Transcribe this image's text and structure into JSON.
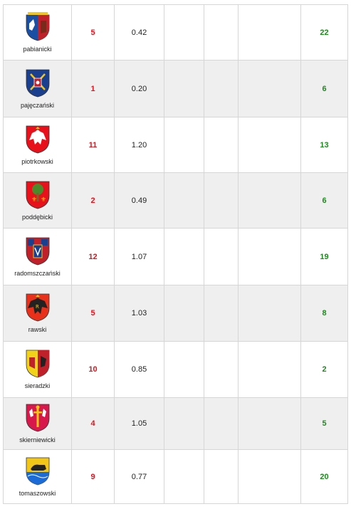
{
  "rows": [
    {
      "name": "pabianicki",
      "red": "5",
      "value": "0.42",
      "green": "22",
      "crest": {
        "colors": [
          "#1a4fa3",
          "#c0202a",
          "#ffffff"
        ],
        "icon": "pabianicki-crest-icon"
      }
    },
    {
      "name": "pajęczański",
      "red": "1",
      "value": "0.20",
      "green": "6",
      "crest": {
        "colors": [
          "#1a3f8f",
          "#f2c618",
          "#c0202a"
        ],
        "icon": "pajeczanski-crest-icon"
      }
    },
    {
      "name": "piotrkowski",
      "red": "11",
      "value": "1.20",
      "green": "13",
      "crest": {
        "colors": [
          "#e8101a",
          "#ffffff",
          "#f2c618"
        ],
        "icon": "piotrkowski-crest-icon"
      }
    },
    {
      "name": "poddębicki",
      "red": "2",
      "value": "0.49",
      "green": "6",
      "crest": {
        "colors": [
          "#e8101a",
          "#f2c618",
          "#4a8a2a"
        ],
        "icon": "poddebicki-crest-icon"
      }
    },
    {
      "name": "radomszczański",
      "red": "12",
      "value": "1.07",
      "green": "19",
      "crest": {
        "colors": [
          "#1a3f8f",
          "#c0202a",
          "#f2c618"
        ],
        "icon": "radomszczanski-crest-icon"
      }
    },
    {
      "name": "rawski",
      "red": "5",
      "value": "1.03",
      "green": "8",
      "crest": {
        "colors": [
          "#e8301a",
          "#222222",
          "#f2c618"
        ],
        "icon": "rawski-crest-icon"
      }
    },
    {
      "name": "sieradzki",
      "red": "10",
      "value": "0.85",
      "green": "2",
      "crest": {
        "colors": [
          "#f2d218",
          "#c0202a",
          "#222222"
        ],
        "icon": "sieradzki-crest-icon"
      }
    },
    {
      "name": "skierniewicki",
      "red": "4",
      "value": "1.05",
      "green": "5",
      "crest": {
        "colors": [
          "#d8184a",
          "#ffffff",
          "#f2c618"
        ],
        "icon": "skierniewicki-crest-icon"
      }
    },
    {
      "name": "tomaszowski",
      "red": "9",
      "value": "0.77",
      "green": "20",
      "crest": {
        "colors": [
          "#f2c618",
          "#1a6ad8",
          "#222222"
        ],
        "icon": "tomaszowski-crest-icon"
      }
    }
  ]
}
